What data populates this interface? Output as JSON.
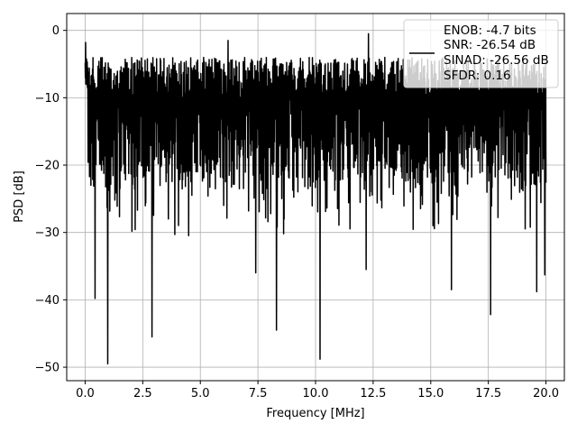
{
  "chart_data": {
    "type": "line",
    "title": "",
    "xlabel": "Frequency [MHz]",
    "ylabel": "PSD [dB]",
    "xlim": [
      -0.8,
      20.8
    ],
    "ylim": [
      -52,
      2.5
    ],
    "xticks": [
      0.0,
      2.5,
      5.0,
      7.5,
      10.0,
      12.5,
      15.0,
      17.5,
      20.0
    ],
    "xtick_labels": [
      "0.0",
      "2.5",
      "5.0",
      "7.5",
      "10.0",
      "12.5",
      "15.0",
      "17.5",
      "20.0"
    ],
    "yticks": [
      0,
      -10,
      -20,
      -30,
      -40,
      -50
    ],
    "ytick_labels": [
      "0",
      "−10",
      "−20",
      "−30",
      "−40",
      "−50"
    ],
    "grid": true,
    "legend": {
      "placement": "top-right",
      "entries": [
        "ENOB: -4.7 bits",
        "SNR: -26.54 dB",
        "SINAD: -26.56 dB",
        "SFDR: 0.16"
      ]
    },
    "series": [
      {
        "color": "#000000",
        "x_start": 0.0,
        "x_end": 20.0,
        "n_points": 2000,
        "envelope_upper_db": -4,
        "envelope_lower_db": -28,
        "prominent_dips": [
          {
            "x": 0.43,
            "y": -39.8
          },
          {
            "x": 0.98,
            "y": -49.5
          },
          {
            "x": 2.9,
            "y": -45.5
          },
          {
            "x": 7.4,
            "y": -36.0
          },
          {
            "x": 8.3,
            "y": -44.5
          },
          {
            "x": 10.2,
            "y": -48.8
          },
          {
            "x": 12.2,
            "y": -35.5
          },
          {
            "x": 15.9,
            "y": -38.5
          },
          {
            "x": 17.6,
            "y": -42.2
          },
          {
            "x": 19.6,
            "y": -38.8
          },
          {
            "x": 19.95,
            "y": -36.3
          }
        ],
        "prominent_peaks": [
          {
            "x": 0.02,
            "y": -1.8
          },
          {
            "x": 6.2,
            "y": -1.5
          },
          {
            "x": 12.3,
            "y": -0.5
          }
        ]
      }
    ]
  }
}
